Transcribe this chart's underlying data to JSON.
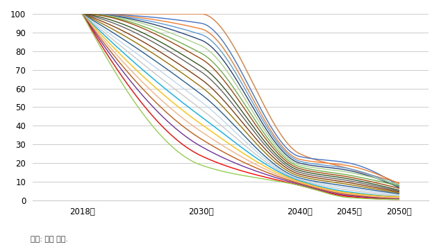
{
  "x_ticks": [
    "2018년",
    "2030년",
    "2040년",
    "2045년",
    "2050년"
  ],
  "x_tick_pos": [
    2018,
    2030,
    2040,
    2045,
    2050
  ],
  "lines": [
    {
      "color": "#E07B39",
      "ctrl": [
        100,
        100,
        25.0,
        17.0,
        9.5
      ]
    },
    {
      "color": "#4472C4",
      "ctrl": [
        100,
        95,
        23.5,
        20.0,
        8.0
      ]
    },
    {
      "color": "#ED7D31",
      "ctrl": [
        100,
        92,
        22.0,
        18.5,
        9.0
      ]
    },
    {
      "color": "#5B9BD5",
      "ctrl": [
        100,
        89,
        21.0,
        17.0,
        7.5
      ]
    },
    {
      "color": "#264478",
      "ctrl": [
        100,
        86,
        20.0,
        16.0,
        7.0
      ]
    },
    {
      "color": "#A9D18E",
      "ctrl": [
        100,
        83,
        19.0,
        15.0,
        8.5
      ]
    },
    {
      "color": "#70AD47",
      "ctrl": [
        100,
        79,
        18.0,
        13.5,
        7.8
      ]
    },
    {
      "color": "#9E480E",
      "ctrl": [
        100,
        76,
        17.0,
        12.5,
        6.5
      ]
    },
    {
      "color": "#375623",
      "ctrl": [
        100,
        72,
        16.0,
        11.5,
        5.5
      ]
    },
    {
      "color": "#636363",
      "ctrl": [
        100,
        69,
        15.0,
        10.5,
        5.0
      ]
    },
    {
      "color": "#843C0C",
      "ctrl": [
        100,
        65,
        14.0,
        9.5,
        4.5
      ]
    },
    {
      "color": "#997300",
      "ctrl": [
        100,
        61,
        13.0,
        8.5,
        4.0
      ]
    },
    {
      "color": "#255E91",
      "ctrl": [
        100,
        57,
        12.0,
        7.5,
        3.5
      ]
    },
    {
      "color": "#BDD7EE",
      "ctrl": [
        100,
        53,
        11.5,
        6.5,
        3.0
      ]
    },
    {
      "color": "#C9C9C9",
      "ctrl": [
        100,
        49,
        11.0,
        5.5,
        2.5
      ]
    },
    {
      "color": "#00B0F0",
      "ctrl": [
        100,
        45,
        10.5,
        4.5,
        2.0
      ]
    },
    {
      "color": "#FFC000",
      "ctrl": [
        100,
        41,
        10.0,
        4.0,
        2.0
      ]
    },
    {
      "color": "#F4B183",
      "ctrl": [
        100,
        37,
        9.5,
        3.5,
        1.5
      ]
    },
    {
      "color": "#C55A11",
      "ctrl": [
        100,
        33,
        9.0,
        3.0,
        1.0
      ]
    },
    {
      "color": "#7030A0",
      "ctrl": [
        100,
        29,
        8.5,
        2.5,
        0.8
      ]
    },
    {
      "color": "#FF0000",
      "ctrl": [
        100,
        24,
        8.0,
        2.0,
        0.5
      ]
    },
    {
      "color": "#92D050",
      "ctrl": [
        100,
        19,
        8.0,
        1.5,
        0.5
      ]
    }
  ],
  "ylim": [
    0,
    100
  ],
  "ylabel_ticks": [
    0,
    10,
    20,
    30,
    40,
    50,
    60,
    70,
    80,
    90,
    100
  ],
  "caption": "자료: 저자 작성.",
  "bg_color": "#FFFFFF",
  "grid_color": "#CCCCCC",
  "line_width": 1.0
}
